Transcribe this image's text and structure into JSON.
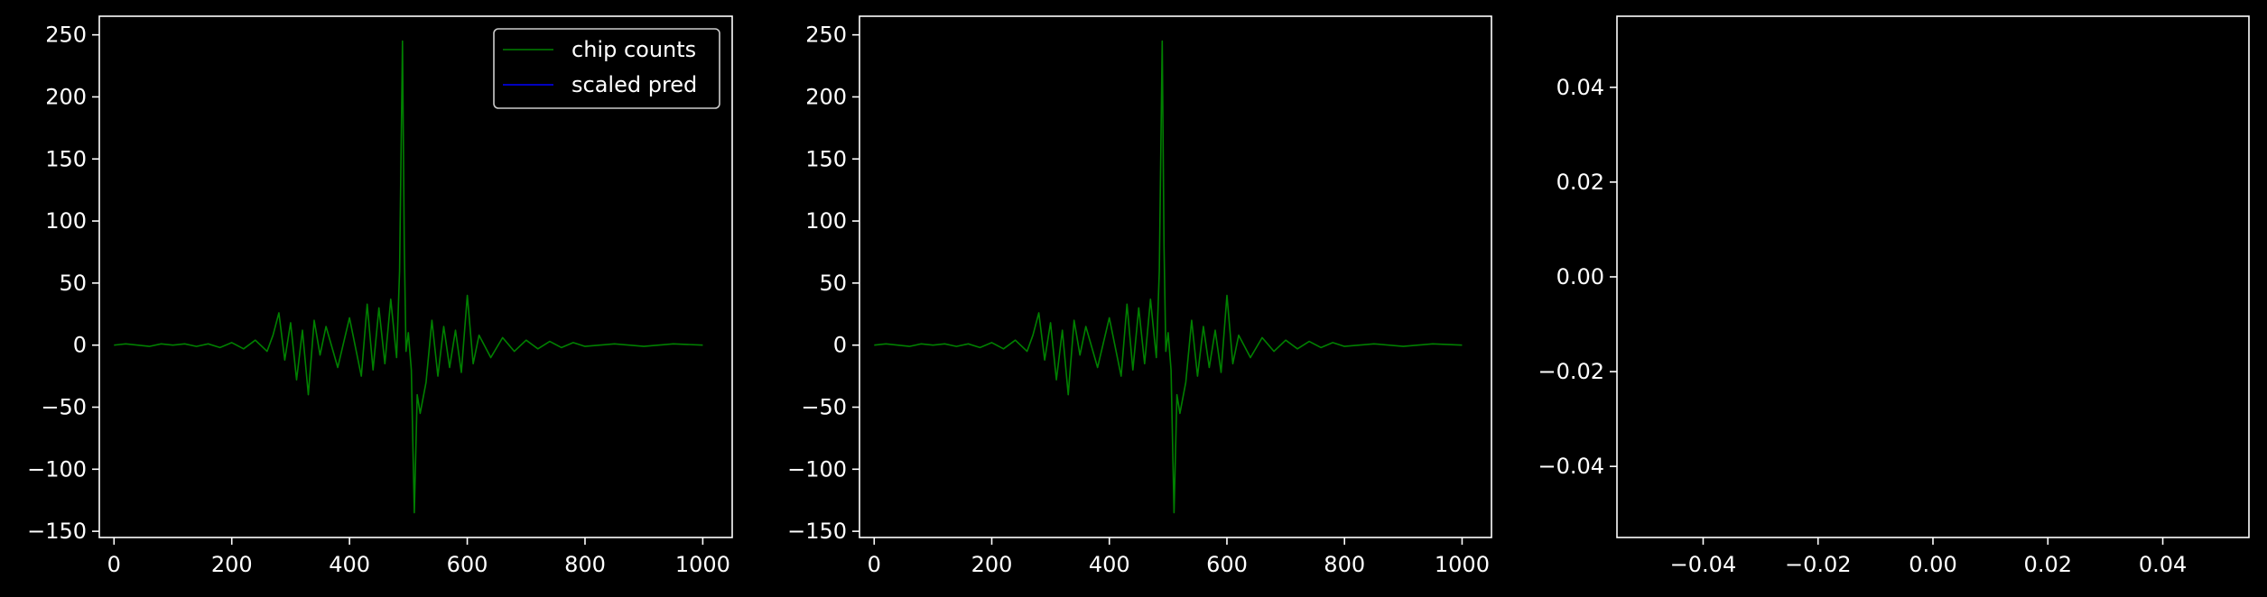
{
  "figure": {
    "background": "#000000",
    "axes_color": "#ffffff",
    "text_color": "#ffffff"
  },
  "chart_data": [
    {
      "type": "line",
      "title": "",
      "xlabel": "",
      "ylabel": "",
      "xlim": [
        -25,
        1050
      ],
      "ylim": [
        -155,
        265
      ],
      "xticks": [
        0,
        200,
        400,
        600,
        800,
        1000
      ],
      "xtick_labels": [
        "0",
        "200",
        "400",
        "600",
        "800",
        "1000"
      ],
      "yticks": [
        -150,
        -100,
        -50,
        0,
        50,
        100,
        150,
        200,
        250
      ],
      "ytick_labels": [
        "−150",
        "−100",
        "−50",
        "0",
        "50",
        "100",
        "150",
        "200",
        "250"
      ],
      "grid": false,
      "legend": {
        "placement": "upper-right",
        "entries": [
          {
            "label": "chip counts",
            "color": "#008000"
          },
          {
            "label": "scaled pred",
            "color": "#0000ff"
          }
        ]
      },
      "series": [
        {
          "name": "chip counts",
          "color": "#008000",
          "x": [
            0,
            20,
            40,
            60,
            80,
            100,
            120,
            140,
            160,
            180,
            200,
            220,
            240,
            260,
            270,
            280,
            290,
            300,
            310,
            320,
            330,
            340,
            350,
            360,
            380,
            400,
            420,
            430,
            440,
            450,
            460,
            470,
            480,
            485,
            490,
            493,
            496,
            500,
            505,
            510,
            515,
            520,
            530,
            540,
            550,
            560,
            570,
            580,
            590,
            600,
            610,
            620,
            640,
            660,
            680,
            700,
            720,
            740,
            760,
            780,
            800,
            850,
            900,
            950,
            1000
          ],
          "values": [
            0,
            1,
            0,
            -1,
            1,
            0,
            1,
            -1,
            1,
            -2,
            2,
            -3,
            4,
            -5,
            8,
            26,
            -12,
            18,
            -28,
            12,
            -40,
            20,
            -8,
            15,
            -18,
            22,
            -25,
            33,
            -20,
            30,
            -15,
            37,
            -10,
            60,
            245,
            80,
            -5,
            10,
            -20,
            -135,
            -40,
            -55,
            -30,
            20,
            -25,
            15,
            -18,
            12,
            -22,
            40,
            -15,
            8,
            -10,
            6,
            -5,
            4,
            -3,
            3,
            -2,
            2,
            -1,
            1,
            -1,
            1,
            0
          ]
        }
      ]
    },
    {
      "type": "line",
      "title": "",
      "xlabel": "",
      "ylabel": "",
      "xlim": [
        -25,
        1050
      ],
      "ylim": [
        -155,
        265
      ],
      "xticks": [
        0,
        200,
        400,
        600,
        800,
        1000
      ],
      "xtick_labels": [
        "0",
        "200",
        "400",
        "600",
        "800",
        "1000"
      ],
      "yticks": [
        -150,
        -100,
        -50,
        0,
        50,
        100,
        150,
        200,
        250
      ],
      "ytick_labels": [
        "−150",
        "−100",
        "−50",
        "0",
        "50",
        "100",
        "150",
        "200",
        "250"
      ],
      "grid": false,
      "series": [
        {
          "color": "#008000",
          "x": [
            0,
            20,
            40,
            60,
            80,
            100,
            120,
            140,
            160,
            180,
            200,
            220,
            240,
            260,
            270,
            280,
            290,
            300,
            310,
            320,
            330,
            340,
            350,
            360,
            380,
            400,
            420,
            430,
            440,
            450,
            460,
            470,
            480,
            485,
            490,
            493,
            496,
            500,
            505,
            510,
            515,
            520,
            530,
            540,
            550,
            560,
            570,
            580,
            590,
            600,
            610,
            620,
            640,
            660,
            680,
            700,
            720,
            740,
            760,
            780,
            800,
            850,
            900,
            950,
            1000
          ],
          "values": [
            0,
            1,
            0,
            -1,
            1,
            0,
            1,
            -1,
            1,
            -2,
            2,
            -3,
            4,
            -5,
            8,
            26,
            -12,
            18,
            -28,
            12,
            -40,
            20,
            -8,
            15,
            -18,
            22,
            -25,
            33,
            -20,
            30,
            -15,
            37,
            -10,
            60,
            245,
            80,
            -5,
            10,
            -20,
            -135,
            -40,
            -55,
            -30,
            20,
            -25,
            15,
            -18,
            12,
            -22,
            40,
            -15,
            8,
            -10,
            6,
            -5,
            4,
            -3,
            3,
            -2,
            2,
            -1,
            1,
            -1,
            1,
            0
          ]
        }
      ]
    },
    {
      "type": "line",
      "title": "",
      "xlabel": "",
      "ylabel": "",
      "xlim": [
        -0.055,
        0.055
      ],
      "ylim": [
        -0.055,
        0.055
      ],
      "xticks": [
        -0.04,
        -0.02,
        0.0,
        0.02,
        0.04
      ],
      "xtick_labels": [
        "−0.04",
        "−0.02",
        "0.00",
        "0.02",
        "0.04"
      ],
      "yticks": [
        -0.04,
        -0.02,
        0.0,
        0.02,
        0.04
      ],
      "ytick_labels": [
        "−0.04",
        "−0.02",
        "0.00",
        "0.02",
        "0.04"
      ],
      "grid": false,
      "series": []
    }
  ]
}
